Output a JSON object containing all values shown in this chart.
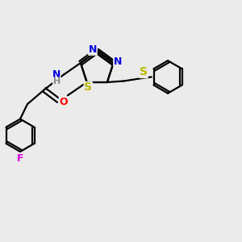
{
  "bg_color": "#ebebeb",
  "bond_color": "#000000",
  "bond_width": 1.6,
  "atom_colors": {
    "N": "#0000dd",
    "S": "#bbbb00",
    "O": "#ff0000",
    "F": "#dd00dd",
    "H": "#888888",
    "C": "#000000"
  },
  "font_size": 9,
  "fig_size": [
    3.0,
    3.0
  ],
  "dpi": 100
}
